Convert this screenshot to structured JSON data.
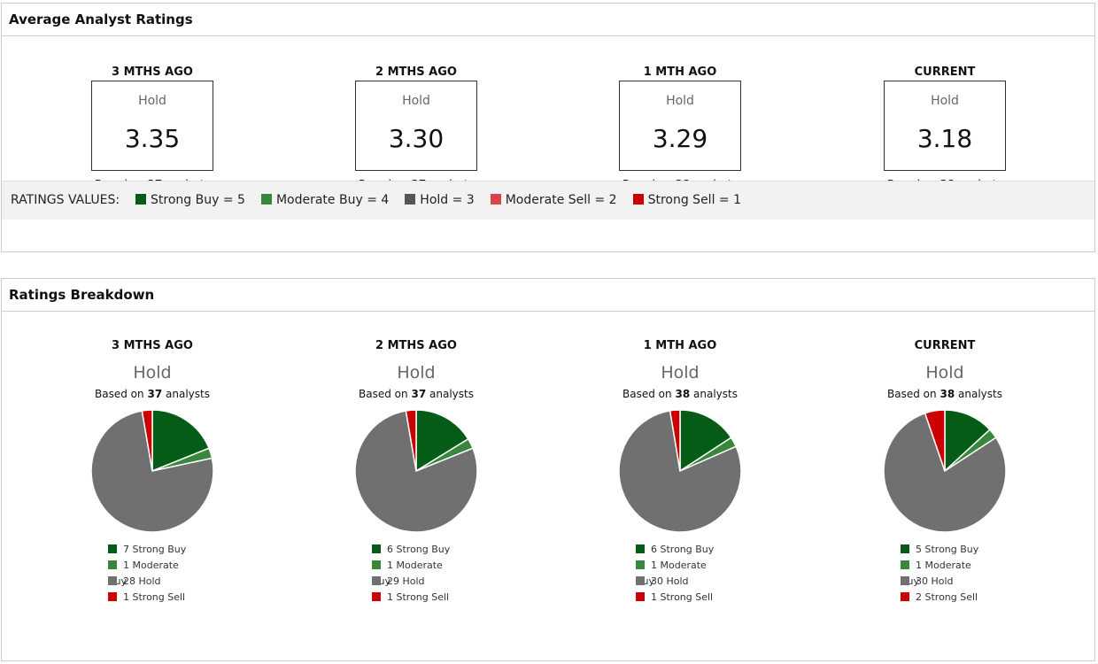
{
  "avg": {
    "title": "Average Analyst Ratings",
    "periods": [
      {
        "label": "3 MTHS AGO",
        "rating": "Hold",
        "value": "3.35",
        "analysts": "37"
      },
      {
        "label": "2 MTHS AGO",
        "rating": "Hold",
        "value": "3.30",
        "analysts": "37"
      },
      {
        "label": "1 MTH AGO",
        "rating": "Hold",
        "value": "3.29",
        "analysts": "38"
      },
      {
        "label": "CURRENT",
        "rating": "Hold",
        "value": "3.18",
        "analysts": "38"
      }
    ],
    "based_prefix": "Based on",
    "based_suffix": "analysts",
    "legend_title": "RATINGS VALUES:",
    "legend": [
      {
        "label": "Strong Buy = 5",
        "color": "#045c16"
      },
      {
        "label": "Moderate Buy = 4",
        "color": "#37873d"
      },
      {
        "label": "Hold = 3",
        "color": "#555555"
      },
      {
        "label": "Moderate Sell = 2",
        "color": "#d9434a"
      },
      {
        "label": "Strong Sell = 1",
        "color": "#cc0000"
      }
    ]
  },
  "breakdown": {
    "title": "Ratings Breakdown"
  },
  "chart_data": [
    {
      "type": "pie",
      "title": "3 MTHS AGO",
      "subtitle": "Hold",
      "analysts": "37",
      "slices": [
        {
          "label": "Strong Buy",
          "value": 7
        },
        {
          "label": "Moderate Buy",
          "value": 1
        },
        {
          "label": "Hold",
          "value": 28
        },
        {
          "label": "Strong Sell",
          "value": 1
        }
      ],
      "legend_text": [
        "7 Strong Buy",
        "1 Moderate Buy",
        "28 Hold",
        "1 Strong Sell"
      ]
    },
    {
      "type": "pie",
      "title": "2 MTHS AGO",
      "subtitle": "Hold",
      "analysts": "37",
      "slices": [
        {
          "label": "Strong Buy",
          "value": 6
        },
        {
          "label": "Moderate Buy",
          "value": 1
        },
        {
          "label": "Hold",
          "value": 29
        },
        {
          "label": "Strong Sell",
          "value": 1
        }
      ],
      "legend_text": [
        "6 Strong Buy",
        "1 Moderate Buy",
        "29 Hold",
        "1 Strong Sell"
      ]
    },
    {
      "type": "pie",
      "title": "1 MTH AGO",
      "subtitle": "Hold",
      "analysts": "38",
      "slices": [
        {
          "label": "Strong Buy",
          "value": 6
        },
        {
          "label": "Moderate Buy",
          "value": 1
        },
        {
          "label": "Hold",
          "value": 30
        },
        {
          "label": "Strong Sell",
          "value": 1
        }
      ],
      "legend_text": [
        "6 Strong Buy",
        "1 Moderate Buy",
        "30 Hold",
        "1 Strong Sell"
      ]
    },
    {
      "type": "pie",
      "title": "CURRENT",
      "subtitle": "Hold",
      "analysts": "38",
      "slices": [
        {
          "label": "Strong Buy",
          "value": 5
        },
        {
          "label": "Moderate Buy",
          "value": 1
        },
        {
          "label": "Hold",
          "value": 30
        },
        {
          "label": "Strong Sell",
          "value": 2
        }
      ],
      "legend_text": [
        "5 Strong Buy",
        "1 Moderate Buy",
        "30 Hold",
        "2 Strong Sell"
      ]
    }
  ],
  "pie_colors": {
    "Strong Buy": "#045c16",
    "Moderate Buy": "#37873d",
    "Hold": "#707070",
    "Strong Sell": "#cc0000"
  }
}
